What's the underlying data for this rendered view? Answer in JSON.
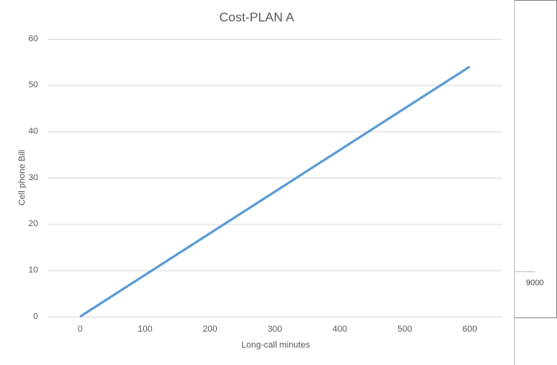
{
  "chart_data": {
    "type": "line",
    "title": "Cost-PLAN A",
    "x_label": "Long-call minutes",
    "y_label": "Cell phone Bill",
    "x": [
      0,
      100,
      200,
      300,
      400,
      500,
      600
    ],
    "series": [
      {
        "name": "Cost",
        "color": "#5b9bd5",
        "values": [
          0,
          9,
          18,
          27,
          36,
          45,
          54
        ]
      }
    ],
    "xlim": [
      -50,
      650
    ],
    "xticks": [
      0,
      100,
      200,
      300,
      400,
      500,
      600
    ],
    "ylim": [
      0,
      60
    ],
    "yticks": [
      0,
      10,
      20,
      30,
      40,
      50,
      60
    ],
    "grid": true
  },
  "side_panel": {
    "label": "9000"
  }
}
